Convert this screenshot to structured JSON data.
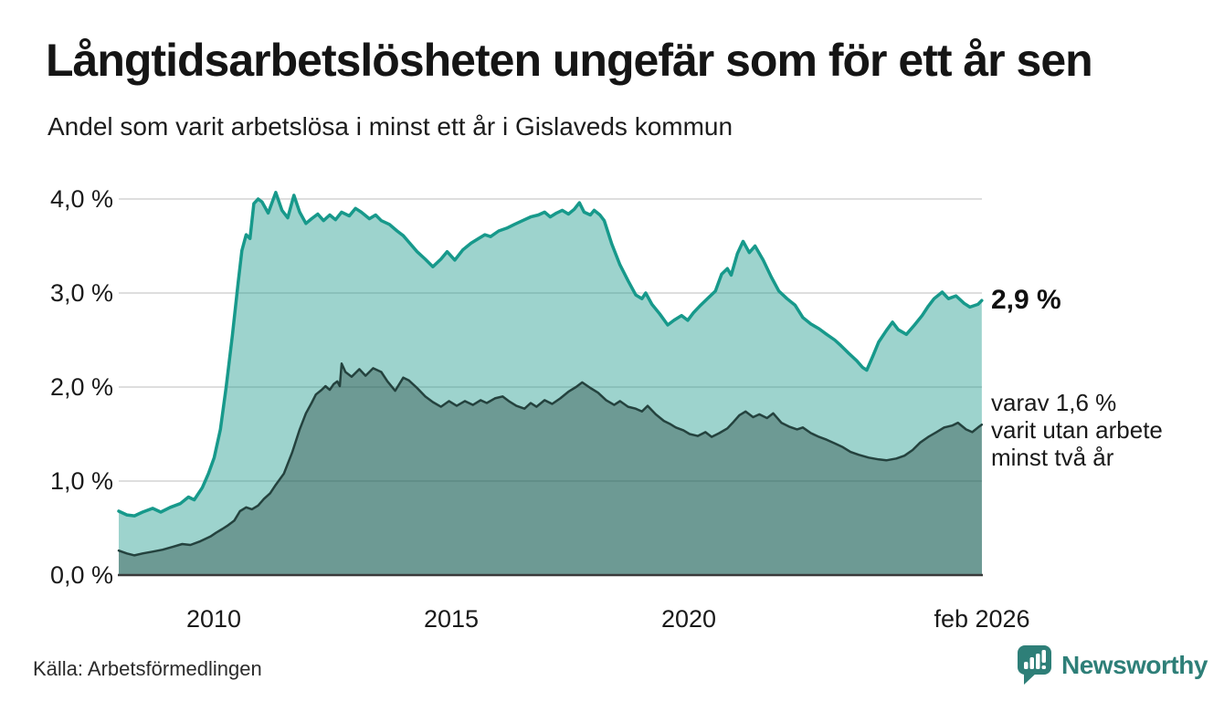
{
  "header": {
    "title": "Långtidsarbetslösheten ungefär som för ett år sen",
    "subtitle": "Andel som varit arbetslösa i minst ett år i Gislaveds kommun"
  },
  "chart_data": {
    "type": "area",
    "title": "Långtidsarbetslösheten ungefär som för ett år sen",
    "subtitle": "Andel som varit arbetslösa i minst ett år i Gislaveds kommun",
    "unit": "%",
    "grid": "horizontal",
    "x_axis": {
      "range_years": [
        2008.0,
        2026.083
      ],
      "ticks": [
        {
          "label": "2010",
          "year": 2010
        },
        {
          "label": "2015",
          "year": 2015
        },
        {
          "label": "2020",
          "year": 2020
        },
        {
          "label": "feb 2026",
          "year": 2026.083
        }
      ]
    },
    "y_axis": {
      "range": [
        0.0,
        4.1
      ],
      "ticks": [
        {
          "label": "4,0 %",
          "value": 4.0
        },
        {
          "label": "3,0 %",
          "value": 3.0
        },
        {
          "label": "2,0 %",
          "value": 2.0
        },
        {
          "label": "1,0 %",
          "value": 1.0
        },
        {
          "label": "0,0 %",
          "value": 0.0
        }
      ]
    },
    "colors": {
      "line_1yr": "#17998b",
      "fill_1yr": "rgba(21,150,137,0.42)",
      "line_2yr": "#24423e",
      "fill_2yr": "rgba(32,60,56,0.38)",
      "gridline": "#dedede",
      "axis_line": "#3a3a3a",
      "brand_teal": "#2e7f78"
    },
    "series": [
      {
        "name": "Andel arbetslösa minst ett år",
        "latest_value": 2.9,
        "points": [
          [
            2008.0,
            0.68
          ],
          [
            2008.17,
            0.64
          ],
          [
            2008.33,
            0.63
          ],
          [
            2008.5,
            0.67
          ],
          [
            2008.71,
            0.71
          ],
          [
            2008.88,
            0.67
          ],
          [
            2009.08,
            0.72
          ],
          [
            2009.29,
            0.76
          ],
          [
            2009.46,
            0.83
          ],
          [
            2009.58,
            0.8
          ],
          [
            2009.75,
            0.93
          ],
          [
            2009.88,
            1.08
          ],
          [
            2010.0,
            1.25
          ],
          [
            2010.13,
            1.55
          ],
          [
            2010.25,
            2.0
          ],
          [
            2010.38,
            2.55
          ],
          [
            2010.5,
            3.1
          ],
          [
            2010.58,
            3.45
          ],
          [
            2010.67,
            3.62
          ],
          [
            2010.75,
            3.58
          ],
          [
            2010.83,
            3.95
          ],
          [
            2010.92,
            4.0
          ],
          [
            2011.0,
            3.97
          ],
          [
            2011.13,
            3.85
          ],
          [
            2011.29,
            4.07
          ],
          [
            2011.42,
            3.88
          ],
          [
            2011.54,
            3.8
          ],
          [
            2011.67,
            4.04
          ],
          [
            2011.79,
            3.86
          ],
          [
            2011.92,
            3.74
          ],
          [
            2012.04,
            3.79
          ],
          [
            2012.17,
            3.84
          ],
          [
            2012.29,
            3.77
          ],
          [
            2012.42,
            3.83
          ],
          [
            2012.54,
            3.78
          ],
          [
            2012.67,
            3.86
          ],
          [
            2012.83,
            3.82
          ],
          [
            2012.96,
            3.9
          ],
          [
            2013.08,
            3.86
          ],
          [
            2013.25,
            3.79
          ],
          [
            2013.38,
            3.83
          ],
          [
            2013.5,
            3.77
          ],
          [
            2013.67,
            3.73
          ],
          [
            2013.83,
            3.66
          ],
          [
            2013.96,
            3.61
          ],
          [
            2014.08,
            3.54
          ],
          [
            2014.25,
            3.44
          ],
          [
            2014.42,
            3.36
          ],
          [
            2014.58,
            3.28
          ],
          [
            2014.75,
            3.36
          ],
          [
            2014.88,
            3.44
          ],
          [
            2015.04,
            3.35
          ],
          [
            2015.21,
            3.46
          ],
          [
            2015.38,
            3.53
          ],
          [
            2015.54,
            3.58
          ],
          [
            2015.67,
            3.62
          ],
          [
            2015.79,
            3.6
          ],
          [
            2015.96,
            3.66
          ],
          [
            2016.13,
            3.69
          ],
          [
            2016.29,
            3.73
          ],
          [
            2016.46,
            3.77
          ],
          [
            2016.63,
            3.81
          ],
          [
            2016.79,
            3.83
          ],
          [
            2016.92,
            3.86
          ],
          [
            2017.04,
            3.81
          ],
          [
            2017.17,
            3.85
          ],
          [
            2017.29,
            3.88
          ],
          [
            2017.42,
            3.84
          ],
          [
            2017.54,
            3.89
          ],
          [
            2017.65,
            3.96
          ],
          [
            2017.75,
            3.86
          ],
          [
            2017.88,
            3.83
          ],
          [
            2017.96,
            3.88
          ],
          [
            2018.08,
            3.83
          ],
          [
            2018.17,
            3.77
          ],
          [
            2018.33,
            3.52
          ],
          [
            2018.5,
            3.3
          ],
          [
            2018.67,
            3.13
          ],
          [
            2018.83,
            2.98
          ],
          [
            2018.96,
            2.94
          ],
          [
            2019.04,
            3.0
          ],
          [
            2019.17,
            2.88
          ],
          [
            2019.33,
            2.78
          ],
          [
            2019.5,
            2.66
          ],
          [
            2019.63,
            2.71
          ],
          [
            2019.79,
            2.76
          ],
          [
            2019.92,
            2.71
          ],
          [
            2020.04,
            2.79
          ],
          [
            2020.17,
            2.86
          ],
          [
            2020.33,
            2.94
          ],
          [
            2020.5,
            3.02
          ],
          [
            2020.63,
            3.2
          ],
          [
            2020.75,
            3.26
          ],
          [
            2020.83,
            3.19
          ],
          [
            2020.96,
            3.42
          ],
          [
            2021.08,
            3.55
          ],
          [
            2021.21,
            3.43
          ],
          [
            2021.33,
            3.5
          ],
          [
            2021.5,
            3.35
          ],
          [
            2021.67,
            3.17
          ],
          [
            2021.83,
            3.02
          ],
          [
            2022.0,
            2.94
          ],
          [
            2022.17,
            2.87
          ],
          [
            2022.33,
            2.74
          ],
          [
            2022.5,
            2.67
          ],
          [
            2022.67,
            2.62
          ],
          [
            2022.83,
            2.56
          ],
          [
            2023.0,
            2.5
          ],
          [
            2023.13,
            2.44
          ],
          [
            2023.29,
            2.36
          ],
          [
            2023.46,
            2.28
          ],
          [
            2023.58,
            2.21
          ],
          [
            2023.67,
            2.18
          ],
          [
            2023.79,
            2.32
          ],
          [
            2023.92,
            2.48
          ],
          [
            2024.08,
            2.6
          ],
          [
            2024.21,
            2.69
          ],
          [
            2024.33,
            2.61
          ],
          [
            2024.5,
            2.56
          ],
          [
            2024.67,
            2.66
          ],
          [
            2024.83,
            2.76
          ],
          [
            2024.96,
            2.86
          ],
          [
            2025.08,
            2.94
          ],
          [
            2025.25,
            3.01
          ],
          [
            2025.38,
            2.94
          ],
          [
            2025.54,
            2.97
          ],
          [
            2025.71,
            2.89
          ],
          [
            2025.83,
            2.85
          ],
          [
            2026.0,
            2.88
          ],
          [
            2026.08,
            2.92
          ]
        ]
      },
      {
        "name": "varav arbetslösa minst två år",
        "latest_value": 1.6,
        "points": [
          [
            2008.0,
            0.26
          ],
          [
            2008.17,
            0.23
          ],
          [
            2008.33,
            0.21
          ],
          [
            2008.5,
            0.23
          ],
          [
            2008.71,
            0.25
          ],
          [
            2008.92,
            0.27
          ],
          [
            2009.13,
            0.3
          ],
          [
            2009.33,
            0.33
          ],
          [
            2009.5,
            0.32
          ],
          [
            2009.71,
            0.36
          ],
          [
            2009.92,
            0.41
          ],
          [
            2010.04,
            0.45
          ],
          [
            2010.17,
            0.49
          ],
          [
            2010.29,
            0.53
          ],
          [
            2010.42,
            0.58
          ],
          [
            2010.54,
            0.68
          ],
          [
            2010.67,
            0.72
          ],
          [
            2010.79,
            0.7
          ],
          [
            2010.92,
            0.74
          ],
          [
            2011.04,
            0.81
          ],
          [
            2011.17,
            0.87
          ],
          [
            2011.29,
            0.96
          ],
          [
            2011.46,
            1.08
          ],
          [
            2011.63,
            1.3
          ],
          [
            2011.79,
            1.55
          ],
          [
            2011.92,
            1.72
          ],
          [
            2012.04,
            1.83
          ],
          [
            2012.13,
            1.92
          ],
          [
            2012.25,
            1.97
          ],
          [
            2012.33,
            2.01
          ],
          [
            2012.42,
            1.97
          ],
          [
            2012.5,
            2.03
          ],
          [
            2012.58,
            2.06
          ],
          [
            2012.63,
            2.01
          ],
          [
            2012.67,
            2.25
          ],
          [
            2012.75,
            2.16
          ],
          [
            2012.88,
            2.11
          ],
          [
            2013.04,
            2.19
          ],
          [
            2013.17,
            2.12
          ],
          [
            2013.33,
            2.2
          ],
          [
            2013.5,
            2.16
          ],
          [
            2013.63,
            2.06
          ],
          [
            2013.79,
            1.96
          ],
          [
            2013.96,
            2.1
          ],
          [
            2014.08,
            2.07
          ],
          [
            2014.25,
            1.99
          ],
          [
            2014.42,
            1.9
          ],
          [
            2014.58,
            1.84
          ],
          [
            2014.75,
            1.79
          ],
          [
            2014.92,
            1.85
          ],
          [
            2015.08,
            1.8
          ],
          [
            2015.25,
            1.85
          ],
          [
            2015.42,
            1.81
          ],
          [
            2015.58,
            1.86
          ],
          [
            2015.71,
            1.83
          ],
          [
            2015.88,
            1.88
          ],
          [
            2016.04,
            1.9
          ],
          [
            2016.17,
            1.85
          ],
          [
            2016.33,
            1.8
          ],
          [
            2016.5,
            1.77
          ],
          [
            2016.63,
            1.83
          ],
          [
            2016.75,
            1.79
          ],
          [
            2016.92,
            1.86
          ],
          [
            2017.08,
            1.82
          ],
          [
            2017.25,
            1.88
          ],
          [
            2017.42,
            1.95
          ],
          [
            2017.58,
            2.0
          ],
          [
            2017.71,
            2.05
          ],
          [
            2017.88,
            1.99
          ],
          [
            2018.04,
            1.94
          ],
          [
            2018.21,
            1.86
          ],
          [
            2018.38,
            1.81
          ],
          [
            2018.5,
            1.85
          ],
          [
            2018.67,
            1.79
          ],
          [
            2018.83,
            1.77
          ],
          [
            2018.96,
            1.74
          ],
          [
            2019.08,
            1.8
          ],
          [
            2019.25,
            1.71
          ],
          [
            2019.42,
            1.64
          ],
          [
            2019.54,
            1.61
          ],
          [
            2019.67,
            1.57
          ],
          [
            2019.83,
            1.54
          ],
          [
            2019.96,
            1.5
          ],
          [
            2020.13,
            1.48
          ],
          [
            2020.29,
            1.52
          ],
          [
            2020.42,
            1.47
          ],
          [
            2020.58,
            1.51
          ],
          [
            2020.75,
            1.56
          ],
          [
            2020.88,
            1.63
          ],
          [
            2021.0,
            1.7
          ],
          [
            2021.13,
            1.74
          ],
          [
            2021.29,
            1.68
          ],
          [
            2021.42,
            1.71
          ],
          [
            2021.58,
            1.67
          ],
          [
            2021.71,
            1.72
          ],
          [
            2021.88,
            1.62
          ],
          [
            2022.04,
            1.58
          ],
          [
            2022.21,
            1.55
          ],
          [
            2022.33,
            1.57
          ],
          [
            2022.5,
            1.51
          ],
          [
            2022.67,
            1.47
          ],
          [
            2022.83,
            1.44
          ],
          [
            2023.0,
            1.4
          ],
          [
            2023.17,
            1.36
          ],
          [
            2023.33,
            1.31
          ],
          [
            2023.5,
            1.28
          ],
          [
            2023.71,
            1.25
          ],
          [
            2023.92,
            1.23
          ],
          [
            2024.08,
            1.22
          ],
          [
            2024.29,
            1.24
          ],
          [
            2024.46,
            1.27
          ],
          [
            2024.63,
            1.33
          ],
          [
            2024.79,
            1.41
          ],
          [
            2024.96,
            1.47
          ],
          [
            2025.13,
            1.52
          ],
          [
            2025.29,
            1.57
          ],
          [
            2025.46,
            1.59
          ],
          [
            2025.58,
            1.62
          ],
          [
            2025.75,
            1.55
          ],
          [
            2025.88,
            1.52
          ],
          [
            2026.0,
            1.57
          ],
          [
            2026.08,
            1.6
          ]
        ]
      }
    ],
    "annotations": {
      "value_label": "2,9 %",
      "note_lines": [
        "varav 1,6 %",
        "varit utan arbete",
        "minst två år"
      ]
    },
    "legend_position": "right-annotations"
  },
  "footer": {
    "source": "Källa: Arbetsförmedlingen",
    "logo_text": "Newsworthy"
  }
}
